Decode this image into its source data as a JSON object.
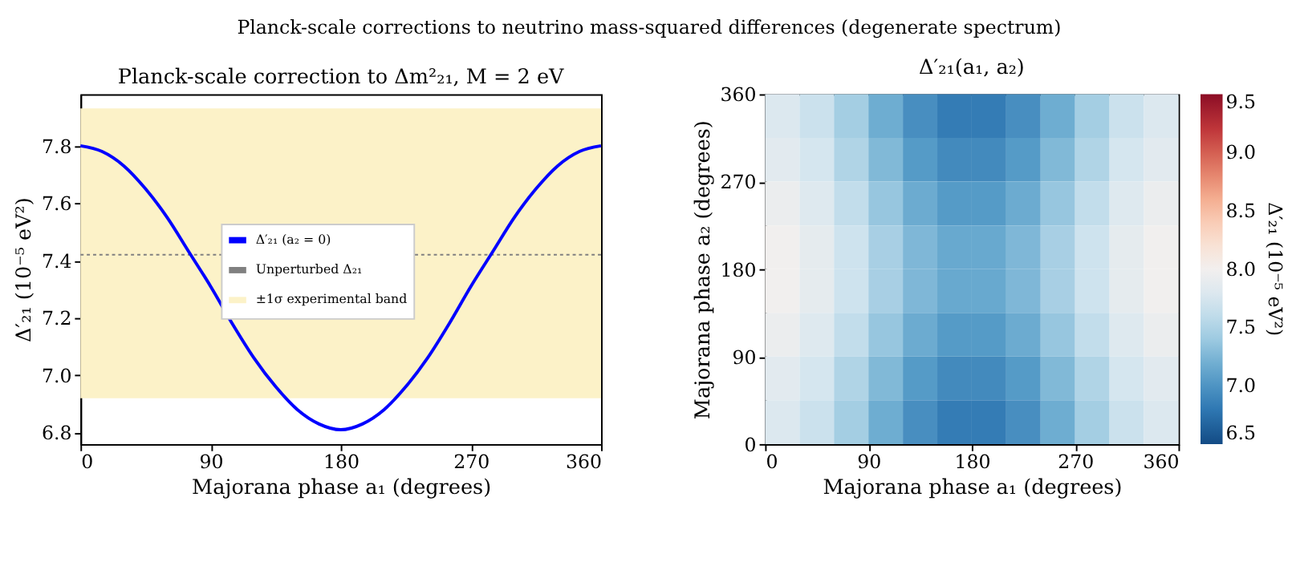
{
  "chart_data": [
    {
      "type": "line",
      "title": "Planck-scale correction to Δm²₂₁, M = 2 eV",
      "xlabel": "Majorana phase a₁ (degrees)",
      "ylabel": "Δ′₂₁ (10⁻⁵ eV²)",
      "annotations": [
        "Planck-scale corrections to neutrino mass-squared differences (degenerate spectrum)"
      ],
      "x": [
        0,
        15,
        30,
        45,
        60,
        75,
        90,
        105,
        120,
        135,
        150,
        165,
        180,
        195,
        210,
        225,
        240,
        255,
        270,
        285,
        300,
        315,
        330,
        345,
        360
      ],
      "series": [
        {
          "name": "Δ′₂₁ (a₂ = 0)",
          "color": "#0000ff",
          "values": [
            7.8,
            7.78,
            7.73,
            7.65,
            7.55,
            7.43,
            7.31,
            7.18,
            7.06,
            6.96,
            6.88,
            6.83,
            6.81,
            6.83,
            6.88,
            6.96,
            7.06,
            7.18,
            7.31,
            7.43,
            7.55,
            7.65,
            7.73,
            7.78,
            7.8
          ]
        }
      ],
      "ref_lines": [
        {
          "axis": "y",
          "value": 7.42,
          "label": "Unperturbed Δ₂₁",
          "color": "#808080",
          "line_style": "dotted"
        }
      ],
      "bands": [
        {
          "axis": "y",
          "from": 6.92,
          "to": 7.93,
          "label": "±1σ experimental band",
          "color": "#fcf2c8"
        }
      ],
      "xlim": [
        0,
        360
      ],
      "xticks": [
        0,
        90,
        180,
        270,
        360
      ],
      "ylim": [
        6.76,
        7.98
      ],
      "yticks": [
        6.8,
        {
          "value": 7,
          "label": "7.0"
        },
        7.2,
        7.4,
        7.6,
        7.8
      ],
      "grid": false,
      "legend": "center",
      "line_style": "solid",
      "marker": "none"
    },
    {
      "type": "heatmap",
      "title": "Δ′₂₁(a₁, a₂)",
      "xlabel": "Majorana phase a₁ (degrees)",
      "ylabel": "Majorana phase a₂ (degrees)",
      "clabel": "Δ′₂₁ (10⁻⁵ eV²)",
      "x": [
        15,
        45,
        75,
        105,
        135,
        165,
        195,
        225,
        255,
        285,
        315,
        345
      ],
      "y": [
        337.5,
        292.5,
        247.5,
        202.5,
        157.5,
        112.5,
        67.5,
        22.5
      ],
      "cells": [
        [
          7.79,
          7.66,
          7.44,
          7.18,
          6.96,
          6.83,
          6.83,
          6.96,
          7.18,
          7.44,
          7.66,
          7.79
        ],
        [
          7.85,
          7.73,
          7.51,
          7.27,
          7.05,
          6.93,
          6.93,
          7.05,
          7.27,
          7.51,
          7.73,
          7.85
        ],
        [
          7.93,
          7.81,
          7.61,
          7.37,
          7.17,
          7.05,
          7.05,
          7.17,
          7.37,
          7.61,
          7.81,
          7.93
        ],
        [
          7.99,
          7.88,
          7.68,
          7.46,
          7.26,
          7.15,
          7.15,
          7.26,
          7.46,
          7.68,
          7.88,
          7.99
        ],
        [
          7.99,
          7.88,
          7.68,
          7.46,
          7.26,
          7.15,
          7.15,
          7.26,
          7.46,
          7.68,
          7.88,
          7.99
        ],
        [
          7.93,
          7.81,
          7.61,
          7.37,
          7.17,
          7.05,
          7.05,
          7.17,
          7.37,
          7.61,
          7.81,
          7.93
        ],
        [
          7.85,
          7.73,
          7.51,
          7.27,
          7.05,
          6.93,
          6.93,
          7.05,
          7.27,
          7.51,
          7.73,
          7.85
        ],
        [
          7.79,
          7.66,
          7.44,
          7.18,
          6.96,
          6.83,
          6.83,
          6.96,
          7.18,
          7.44,
          7.66,
          7.79
        ]
      ],
      "xlim": [
        0,
        360
      ],
      "xticks": [
        0,
        90,
        180,
        270,
        360
      ],
      "ylim": [
        0,
        360
      ],
      "yticks": [
        0,
        90,
        180,
        270,
        360
      ],
      "clim": [
        6.5,
        9.5
      ],
      "cticks": [
        6.5,
        {
          "value": 7,
          "label": "7.0"
        },
        7.5,
        {
          "value": 8,
          "label": "8.0"
        },
        8.5,
        {
          "value": 9,
          "label": "9.0"
        },
        9.5
      ]
    }
  ]
}
